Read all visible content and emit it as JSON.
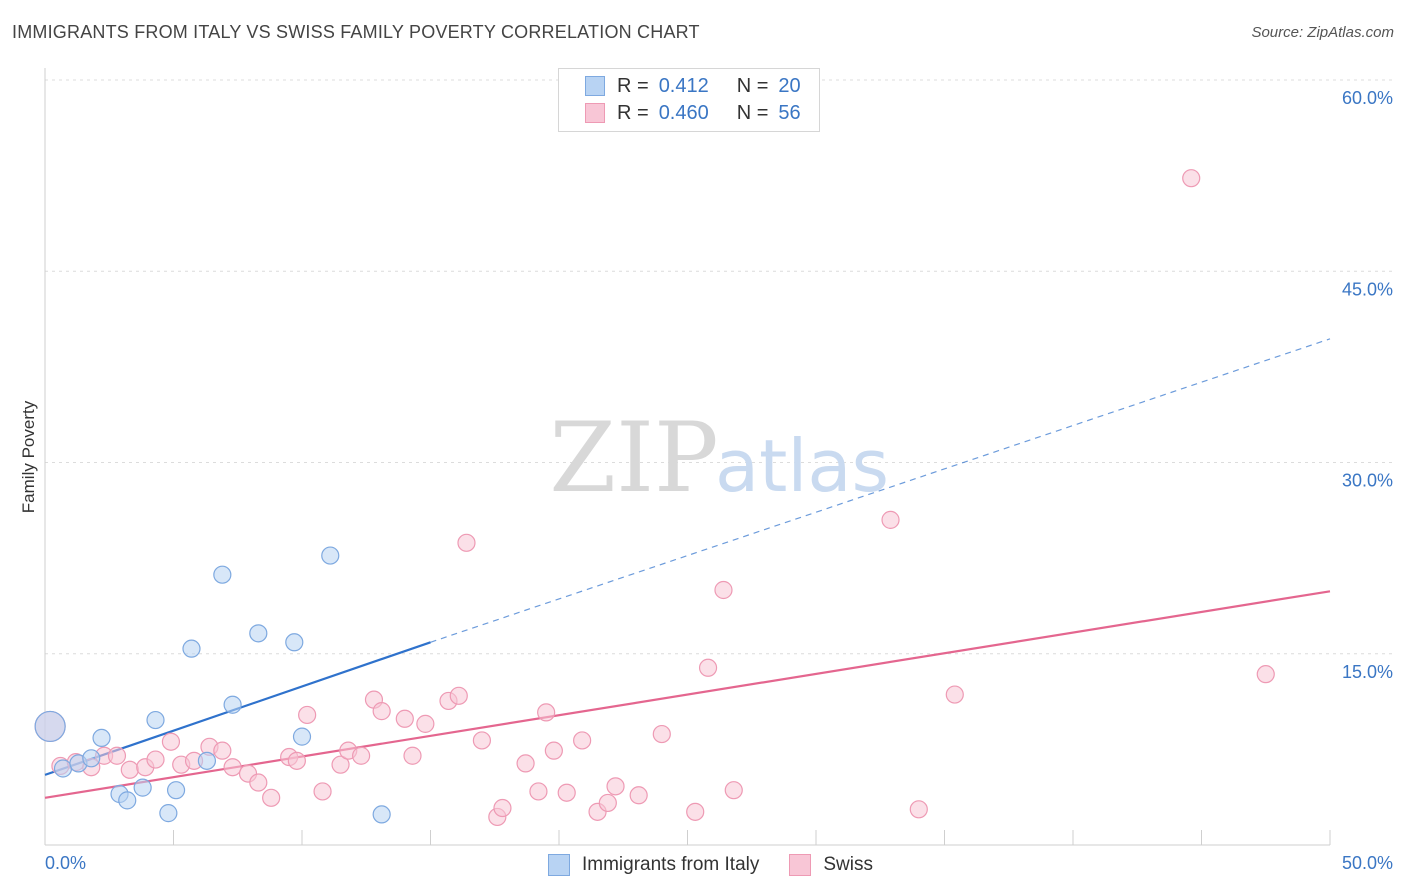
{
  "title": "IMMIGRANTS FROM ITALY VS SWISS FAMILY POVERTY CORRELATION CHART",
  "source": "Source: ZipAtlas.com",
  "watermark": {
    "part1": "ZIP",
    "part2": "atlas"
  },
  "legend": {
    "r_label": "R =",
    "n_label": "N =",
    "italy": {
      "r": "0.412",
      "n": "20"
    },
    "swiss": {
      "r": "0.460",
      "n": "56"
    }
  },
  "colors": {
    "italy_fill": "#b8d3f3",
    "italy_stroke": "#7ea9e0",
    "italy_line": "#2f72cc",
    "swiss_fill": "#f8c6d6",
    "swiss_stroke": "#ee9ab4",
    "swiss_line": "#e4668f",
    "tick_label": "#3a76c4",
    "grid": "#dcdcdc"
  },
  "chart_data": {
    "type": "scatter",
    "title": "IMMIGRANTS FROM ITALY VS SWISS FAMILY POVERTY CORRELATION CHART",
    "xlabel": "",
    "ylabel": "Family Poverty",
    "xlim": [
      0,
      50
    ],
    "ylim": [
      0,
      60
    ],
    "x_tick_labels": [
      "0.0%",
      "50.0%"
    ],
    "y_ticks": [
      15,
      30,
      45,
      60
    ],
    "y_tick_labels": [
      "15.0%",
      "30.0%",
      "45.0%",
      "60.0%"
    ],
    "grid": true,
    "legend_position": "top-center",
    "series": [
      {
        "name": "Immigrants from Italy",
        "r": 0.412,
        "n": 20,
        "points": [
          [
            0.2,
            9.3
          ],
          [
            0.7,
            6.0
          ],
          [
            1.3,
            6.4
          ],
          [
            1.8,
            6.8
          ],
          [
            2.2,
            8.4
          ],
          [
            2.9,
            4.0
          ],
          [
            3.2,
            3.5
          ],
          [
            3.8,
            4.5
          ],
          [
            4.3,
            9.8
          ],
          [
            4.8,
            2.5
          ],
          [
            5.1,
            4.3
          ],
          [
            5.7,
            15.4
          ],
          [
            6.3,
            6.6
          ],
          [
            6.9,
            21.2
          ],
          [
            7.3,
            11.0
          ],
          [
            8.3,
            16.6
          ],
          [
            9.7,
            15.9
          ],
          [
            10.0,
            8.5
          ],
          [
            11.1,
            22.7
          ],
          [
            13.1,
            2.4
          ]
        ],
        "trend": {
          "x": [
            0,
            15
          ],
          "y": [
            5.5,
            15.9
          ],
          "extended": {
            "x": [
              15,
              50
            ],
            "y": [
              15.9,
              39.7
            ],
            "style": "dashed"
          }
        }
      },
      {
        "name": "Swiss",
        "r": 0.46,
        "n": 56,
        "points": [
          [
            0.2,
            9.3
          ],
          [
            0.6,
            6.2
          ],
          [
            1.2,
            6.5
          ],
          [
            1.8,
            6.1
          ],
          [
            2.3,
            7.0
          ],
          [
            2.8,
            7.0
          ],
          [
            3.3,
            5.9
          ],
          [
            3.9,
            6.1
          ],
          [
            4.3,
            6.7
          ],
          [
            4.9,
            8.1
          ],
          [
            5.3,
            6.3
          ],
          [
            5.8,
            6.6
          ],
          [
            6.4,
            7.7
          ],
          [
            6.9,
            7.4
          ],
          [
            7.3,
            6.1
          ],
          [
            7.9,
            5.6
          ],
          [
            8.3,
            4.9
          ],
          [
            8.8,
            3.7
          ],
          [
            9.5,
            6.9
          ],
          [
            9.8,
            6.6
          ],
          [
            10.2,
            10.2
          ],
          [
            10.8,
            4.2
          ],
          [
            11.5,
            6.3
          ],
          [
            11.8,
            7.4
          ],
          [
            12.3,
            7.0
          ],
          [
            12.8,
            11.4
          ],
          [
            13.1,
            10.5
          ],
          [
            14.0,
            9.9
          ],
          [
            14.3,
            7.0
          ],
          [
            14.8,
            9.5
          ],
          [
            15.7,
            11.3
          ],
          [
            16.1,
            11.7
          ],
          [
            16.4,
            23.7
          ],
          [
            17.0,
            8.2
          ],
          [
            17.6,
            2.2
          ],
          [
            17.8,
            2.9
          ],
          [
            18.7,
            6.4
          ],
          [
            19.2,
            4.2
          ],
          [
            19.5,
            10.4
          ],
          [
            19.8,
            7.4
          ],
          [
            20.3,
            4.1
          ],
          [
            20.9,
            8.2
          ],
          [
            21.5,
            2.6
          ],
          [
            21.9,
            3.3
          ],
          [
            22.2,
            4.6
          ],
          [
            23.1,
            3.9
          ],
          [
            24.0,
            8.7
          ],
          [
            25.3,
            2.6
          ],
          [
            25.8,
            13.9
          ],
          [
            26.4,
            20.0
          ],
          [
            26.8,
            4.3
          ],
          [
            32.9,
            25.5
          ],
          [
            34.0,
            2.8
          ],
          [
            35.4,
            11.8
          ],
          [
            44.6,
            52.3
          ],
          [
            47.5,
            13.4
          ]
        ],
        "trend": {
          "x": [
            0,
            50
          ],
          "y": [
            3.7,
            19.9
          ]
        }
      }
    ]
  }
}
